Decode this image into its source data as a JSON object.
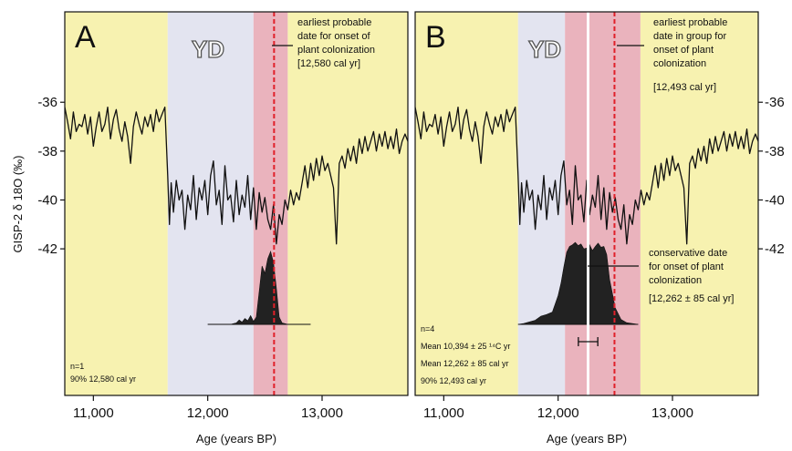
{
  "chart_data": [
    {
      "type": "line",
      "panel_label": "A",
      "xlabel": "Age (years BP)",
      "ylabel": "GISP-2 δ 18O (‰)",
      "xlim": [
        10750,
        13750
      ],
      "x_ticks": [
        11000,
        12000,
        13000
      ],
      "x_tick_labels": [
        "11,000",
        "12,000",
        "13,000"
      ],
      "y_ticks": [
        -36,
        -38,
        -40,
        -42
      ],
      "y_tick_labels": [
        "-36",
        "-38",
        "-40",
        "-42"
      ],
      "y_axis_side": "left",
      "ylim": [
        -48,
        -32.3
      ],
      "shaded_regions": [
        {
          "label": "",
          "range": [
            10750,
            11650
          ],
          "color": "#f7f2b0"
        },
        {
          "label": "YD",
          "range": [
            11650,
            12400
          ],
          "color": "#e3e4f0"
        },
        {
          "label": "",
          "range": [
            12400,
            12700
          ],
          "color": "#eab3bd"
        },
        {
          "label": "",
          "range": [
            12700,
            13750
          ],
          "color": "#f7f2b0"
        }
      ],
      "dashed_line": {
        "x": 12580,
        "color": "#e0202a"
      },
      "annotation": {
        "lines": [
          "earliest probable",
          "date for onset of",
          "plant colonization",
          "[12,580 cal yr]"
        ]
      },
      "stats_text": [
        "n=1",
        "90%  12,580 cal yr"
      ],
      "series": [
        {
          "x": [
            10750,
            10775,
            10800,
            10825,
            10850,
            10875,
            10900,
            10925,
            10950,
            10975,
            11000,
            11025,
            11050,
            11075,
            11100,
            11125,
            11150,
            11175,
            11200,
            11225,
            11250,
            11275,
            11300,
            11325,
            11350,
            11375,
            11400,
            11425,
            11450,
            11475,
            11500,
            11525,
            11550,
            11575,
            11600,
            11625,
            11650,
            11665,
            11680,
            11700,
            11725,
            11750,
            11775,
            11800,
            11825,
            11850,
            11875,
            11900,
            11925,
            11950,
            11975,
            12000,
            12025,
            12050,
            12075,
            12100,
            12125,
            12150,
            12175,
            12200,
            12225,
            12250,
            12275,
            12300,
            12325,
            12350,
            12375,
            12400,
            12425,
            12450,
            12475,
            12500,
            12525,
            12550,
            12575,
            12600,
            12625,
            12650,
            12675,
            12700,
            12725,
            12750,
            12775,
            12800,
            12825,
            12850,
            12875,
            12900,
            12925,
            12950,
            12975,
            13000,
            13025,
            13050,
            13075,
            13100,
            13125,
            13150,
            13175,
            13200,
            13225,
            13250,
            13275,
            13300,
            13325,
            13350,
            13375,
            13400,
            13425,
            13450,
            13475,
            13500,
            13525,
            13550,
            13575,
            13600,
            13625,
            13650,
            13675,
            13700,
            13725,
            13750
          ],
          "y": [
            -36.2,
            -36.8,
            -37.5,
            -36.4,
            -37.2,
            -36.9,
            -37.0,
            -36.5,
            -37.3,
            -36.6,
            -37.8,
            -37.0,
            -36.4,
            -37.2,
            -36.9,
            -36.2,
            -37.5,
            -36.7,
            -36.3,
            -37.1,
            -37.6,
            -36.8,
            -37.4,
            -38.5,
            -37.0,
            -36.4,
            -36.9,
            -37.3,
            -36.6,
            -37.0,
            -36.5,
            -37.2,
            -36.3,
            -36.8,
            -36.5,
            -36.2,
            -39.0,
            -41.0,
            -39.3,
            -40.5,
            -39.2,
            -40.0,
            -39.6,
            -41.2,
            -39.8,
            -40.4,
            -39.0,
            -40.8,
            -39.5,
            -40.0,
            -39.2,
            -40.6,
            -39.0,
            -38.4,
            -40.2,
            -39.6,
            -41.0,
            -38.6,
            -40.0,
            -39.8,
            -40.9,
            -39.2,
            -40.6,
            -39.8,
            -40.3,
            -39.0,
            -40.8,
            -39.5,
            -41.2,
            -39.7,
            -40.5,
            -39.9,
            -40.8,
            -41.2,
            -40.2,
            -41.8,
            -40.6,
            -41.0,
            -40.0,
            -40.4,
            -39.6,
            -40.2,
            -39.7,
            -40.0,
            -39.3,
            -38.6,
            -39.5,
            -38.5,
            -39.2,
            -38.3,
            -39.0,
            -38.2,
            -38.8,
            -38.5,
            -39.0,
            -39.5,
            -41.8,
            -38.5,
            -38.2,
            -38.7,
            -37.9,
            -38.4,
            -37.8,
            -38.5,
            -37.5,
            -38.1,
            -37.4,
            -38.0,
            -37.6,
            -37.2,
            -38.0,
            -37.3,
            -37.8,
            -37.2,
            -37.9,
            -37.4,
            -37.9,
            -37.1,
            -38.1,
            -37.6,
            -37.3,
            -37.6
          ]
        }
      ],
      "distribution": {
        "fill": "#222222",
        "x": [
          12000,
          12100,
          12200,
          12250,
          12275,
          12300,
          12325,
          12350,
          12375,
          12400,
          12425,
          12450,
          12475,
          12500,
          12525,
          12550,
          12575,
          12600,
          12625,
          12650,
          12700
        ],
        "density": [
          0,
          0,
          0,
          0.02,
          0.06,
          0.03,
          0.08,
          0.05,
          0.12,
          0.04,
          0.1,
          0.45,
          0.8,
          0.7,
          0.9,
          1.0,
          0.85,
          0.5,
          0.1,
          0.02,
          0
        ],
        "baseline_range": [
          12000,
          12900
        ]
      }
    },
    {
      "type": "line",
      "panel_label": "B",
      "xlabel": "Age (years BP)",
      "ylabel": "",
      "xlim": [
        10750,
        13750
      ],
      "x_ticks": [
        11000,
        12000,
        13000
      ],
      "x_tick_labels": [
        "11,000",
        "12,000",
        "13,000"
      ],
      "y_ticks": [
        -36,
        -38,
        -40,
        -42
      ],
      "y_tick_labels": [
        "-36",
        "-38",
        "-40",
        "-42"
      ],
      "y_axis_side": "right",
      "ylim": [
        -48,
        -32.3
      ],
      "shaded_regions": [
        {
          "label": "",
          "range": [
            10750,
            11650
          ],
          "color": "#f7f2b0"
        },
        {
          "label": "YD",
          "range": [
            11650,
            12060
          ],
          "color": "#e3e4f0"
        },
        {
          "label": "",
          "range": [
            12060,
            12720
          ],
          "color": "#eab3bd"
        },
        {
          "label": "",
          "range": [
            12720,
            13750
          ],
          "color": "#f7f2b0"
        }
      ],
      "white_line": {
        "x": 12262
      },
      "dashed_line": {
        "x": 12493,
        "color": "#e0202a"
      },
      "annotation": {
        "lines": [
          "earliest probable",
          "date in group for",
          "onset of plant",
          "colonization",
          "[12,493 cal yr]"
        ]
      },
      "annotation2": {
        "lines": [
          "conservative date",
          "for onset of plant",
          "colonization",
          "[12,262 ±  85 cal yr]"
        ]
      },
      "stats_text": [
        "n=4",
        "Mean  10,394 ± 25  ¹⁴C yr",
        "Mean  12,262 ± 85 cal yr",
        "90%   12,493 cal yr"
      ],
      "mean_error_bar": {
        "center": 12262,
        "half_width": 85
      },
      "series": [
        {
          "x": [
            10750,
            10775,
            10800,
            10825,
            10850,
            10875,
            10900,
            10925,
            10950,
            10975,
            11000,
            11025,
            11050,
            11075,
            11100,
            11125,
            11150,
            11175,
            11200,
            11225,
            11250,
            11275,
            11300,
            11325,
            11350,
            11375,
            11400,
            11425,
            11450,
            11475,
            11500,
            11525,
            11550,
            11575,
            11600,
            11625,
            11650,
            11665,
            11680,
            11700,
            11725,
            11750,
            11775,
            11800,
            11825,
            11850,
            11875,
            11900,
            11925,
            11950,
            11975,
            12000,
            12025,
            12050,
            12075,
            12100,
            12125,
            12150,
            12175,
            12200,
            12225,
            12250,
            12275,
            12300,
            12325,
            12350,
            12375,
            12400,
            12425,
            12450,
            12475,
            12500,
            12525,
            12550,
            12575,
            12600,
            12625,
            12650,
            12675,
            12700,
            12725,
            12750,
            12775,
            12800,
            12825,
            12850,
            12875,
            12900,
            12925,
            12950,
            12975,
            13000,
            13025,
            13050,
            13075,
            13100,
            13125,
            13150,
            13175,
            13200,
            13225,
            13250,
            13275,
            13300,
            13325,
            13350,
            13375,
            13400,
            13425,
            13450,
            13475,
            13500,
            13525,
            13550,
            13575,
            13600,
            13625,
            13650,
            13675,
            13700,
            13725,
            13750
          ],
          "y": [
            -36.2,
            -36.8,
            -37.5,
            -36.4,
            -37.2,
            -36.9,
            -37.0,
            -36.5,
            -37.3,
            -36.6,
            -37.8,
            -37.0,
            -36.4,
            -37.2,
            -36.9,
            -36.2,
            -37.5,
            -36.7,
            -36.3,
            -37.1,
            -37.6,
            -36.8,
            -37.4,
            -38.5,
            -37.0,
            -36.4,
            -36.9,
            -37.3,
            -36.6,
            -37.0,
            -36.5,
            -37.2,
            -36.3,
            -36.8,
            -36.5,
            -36.2,
            -39.0,
            -41.0,
            -39.3,
            -40.5,
            -39.2,
            -40.0,
            -39.6,
            -41.2,
            -39.8,
            -40.4,
            -39.0,
            -40.8,
            -39.5,
            -40.0,
            -39.2,
            -40.6,
            -39.0,
            -38.4,
            -40.2,
            -39.6,
            -41.0,
            -38.6,
            -40.0,
            -39.8,
            -40.9,
            -39.2,
            -40.6,
            -39.8,
            -40.3,
            -39.0,
            -40.8,
            -39.5,
            -41.2,
            -39.7,
            -40.5,
            -39.9,
            -40.8,
            -41.2,
            -40.2,
            -41.8,
            -40.6,
            -41.0,
            -40.0,
            -40.4,
            -39.6,
            -40.2,
            -39.7,
            -40.0,
            -39.3,
            -38.6,
            -39.5,
            -38.5,
            -39.2,
            -38.3,
            -39.0,
            -38.2,
            -38.8,
            -38.5,
            -39.0,
            -39.5,
            -41.8,
            -38.5,
            -38.2,
            -38.7,
            -37.9,
            -38.4,
            -37.8,
            -38.5,
            -37.5,
            -38.1,
            -37.4,
            -38.0,
            -37.6,
            -37.2,
            -38.0,
            -37.3,
            -37.8,
            -37.2,
            -37.9,
            -37.4,
            -37.9,
            -37.1,
            -38.1,
            -37.6,
            -37.3,
            -37.6
          ]
        }
      ],
      "distribution": {
        "fill": "#222222",
        "x": [
          11650,
          11700,
          11750,
          11800,
          11850,
          11900,
          11950,
          12000,
          12025,
          12050,
          12075,
          12100,
          12125,
          12150,
          12175,
          12200,
          12225,
          12250,
          12275,
          12300,
          12325,
          12350,
          12375,
          12400,
          12425,
          12450,
          12500,
          12550,
          12600,
          12700
        ],
        "density": [
          0,
          0.01,
          0.03,
          0.05,
          0.1,
          0.12,
          0.15,
          0.35,
          0.5,
          0.7,
          0.88,
          0.95,
          0.97,
          1.0,
          0.96,
          0.98,
          0.92,
          0.93,
          0.97,
          0.9,
          0.95,
          0.99,
          0.94,
          0.95,
          0.85,
          0.55,
          0.2,
          0.06,
          0.02,
          0
        ],
        "baseline_range": [
          11650,
          12700
        ]
      }
    }
  ]
}
